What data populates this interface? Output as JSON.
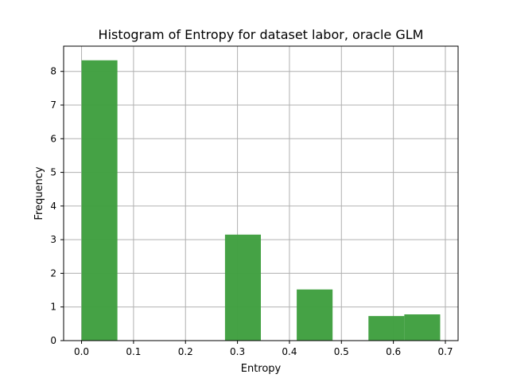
{
  "chart_data": {
    "type": "bar",
    "title": "Histogram of Entropy for dataset labor, oracle GLM",
    "xlabel": "Entropy",
    "ylabel": "Frequency",
    "xlim": [
      -0.0345,
      0.7245
    ],
    "ylim": [
      0,
      8.75
    ],
    "xticks": [
      0.0,
      0.1,
      0.2,
      0.3,
      0.4,
      0.5,
      0.6,
      0.7
    ],
    "xtick_labels": [
      "0.0",
      "0.1",
      "0.2",
      "0.3",
      "0.4",
      "0.5",
      "0.6",
      "0.7"
    ],
    "yticks": [
      0,
      1,
      2,
      3,
      4,
      5,
      6,
      7,
      8
    ],
    "ytick_labels": [
      "0",
      "1",
      "2",
      "3",
      "4",
      "5",
      "6",
      "7",
      "8"
    ],
    "grid": true,
    "bin_edges": [
      0.0,
      0.069,
      0.138,
      0.207,
      0.276,
      0.345,
      0.414,
      0.483,
      0.552,
      0.621,
      0.69
    ],
    "values": [
      8.33,
      0,
      0,
      0,
      3.15,
      0,
      1.52,
      0,
      0.73,
      0.78
    ],
    "color": "#3f9f3f"
  }
}
